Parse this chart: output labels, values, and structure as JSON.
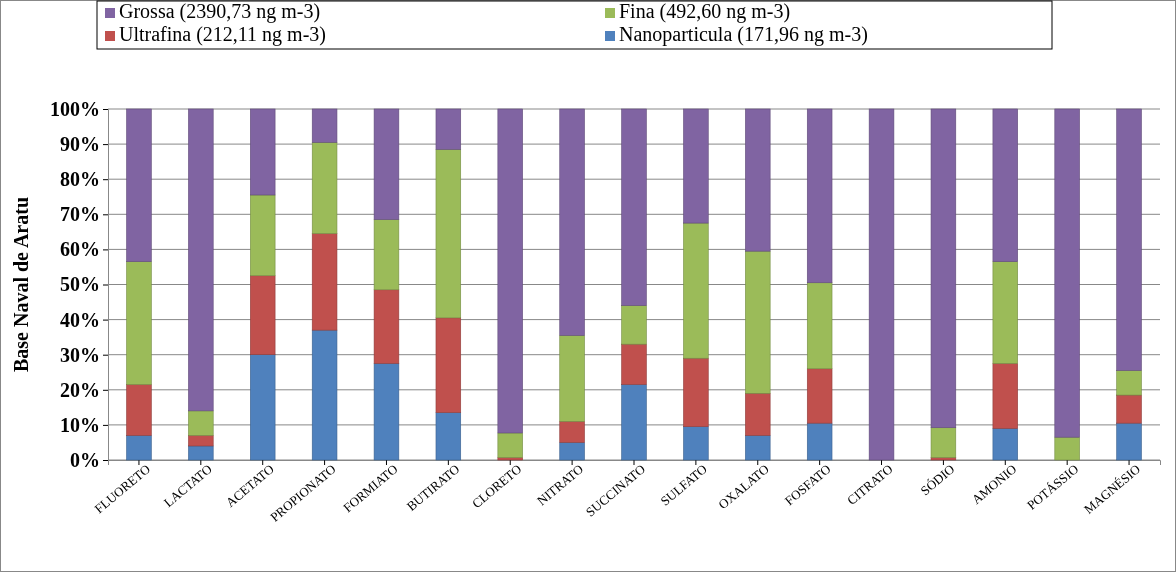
{
  "chart_data": {
    "type": "bar",
    "stacked": true,
    "ylabel": "Base Naval de Aratu",
    "categories": [
      "FLUORETO",
      "LACTATO",
      "ACETATO",
      "PROPIONATO",
      "FORMIATO",
      "BUTIRATO",
      "CLORETO",
      "NITRATO",
      "SUCCINATO",
      "SULFATO",
      "OXALATO",
      "FOSFATO",
      "CITRATO",
      "SÓDIO",
      "AMONIO",
      "POTÁSSIO",
      "MAGNÉSIO"
    ],
    "series": [
      {
        "name": "Nanoparticula (171,96 ng m-3)",
        "color": "#4f81bd",
        "values": [
          7,
          4,
          30,
          37,
          27.5,
          13.5,
          null,
          5,
          21.5,
          9.5,
          7,
          10.5,
          0,
          null,
          9,
          0,
          10.5
        ]
      },
      {
        "name": "Ultrafina (212,11 ng m-3)",
        "color": "#c0504d",
        "values": [
          14.5,
          3,
          22.5,
          27.5,
          21,
          27,
          0.7,
          6,
          11.5,
          19.5,
          12,
          15.5,
          0,
          0.7,
          18.5,
          0,
          8
        ]
      },
      {
        "name": "Fina (492,60 ng m-3)",
        "color": "#9bbb59",
        "values": [
          35,
          7,
          23,
          26,
          20,
          48,
          7,
          24.5,
          11,
          38.5,
          40.5,
          24.5,
          0,
          8.5,
          29,
          6.5,
          7
        ]
      },
      {
        "name": "Grossa (2390,73 ng m-3)",
        "color": "#8064a2",
        "values": [
          43.5,
          86,
          24.5,
          9.5,
          31.5,
          11.5,
          92.3,
          64.5,
          56,
          32.5,
          40.5,
          49.5,
          100,
          90.8,
          43.5,
          93.5,
          74.5
        ]
      }
    ],
    "ylim": [
      0,
      100
    ],
    "yticks": [
      {
        "value": 0,
        "label": "0%"
      },
      {
        "value": 10,
        "label": "10%"
      },
      {
        "value": 20,
        "label": "20%"
      },
      {
        "value": 30,
        "label": "30%"
      },
      {
        "value": 40,
        "label": "40%"
      },
      {
        "value": 50,
        "label": "50%"
      },
      {
        "value": 60,
        "label": "60%"
      },
      {
        "value": 70,
        "label": "70%"
      },
      {
        "value": 80,
        "label": "80%"
      },
      {
        "value": 90,
        "label": "90%"
      },
      {
        "value": 100,
        "label": "100%"
      }
    ],
    "grid": "y",
    "legend": "top"
  }
}
